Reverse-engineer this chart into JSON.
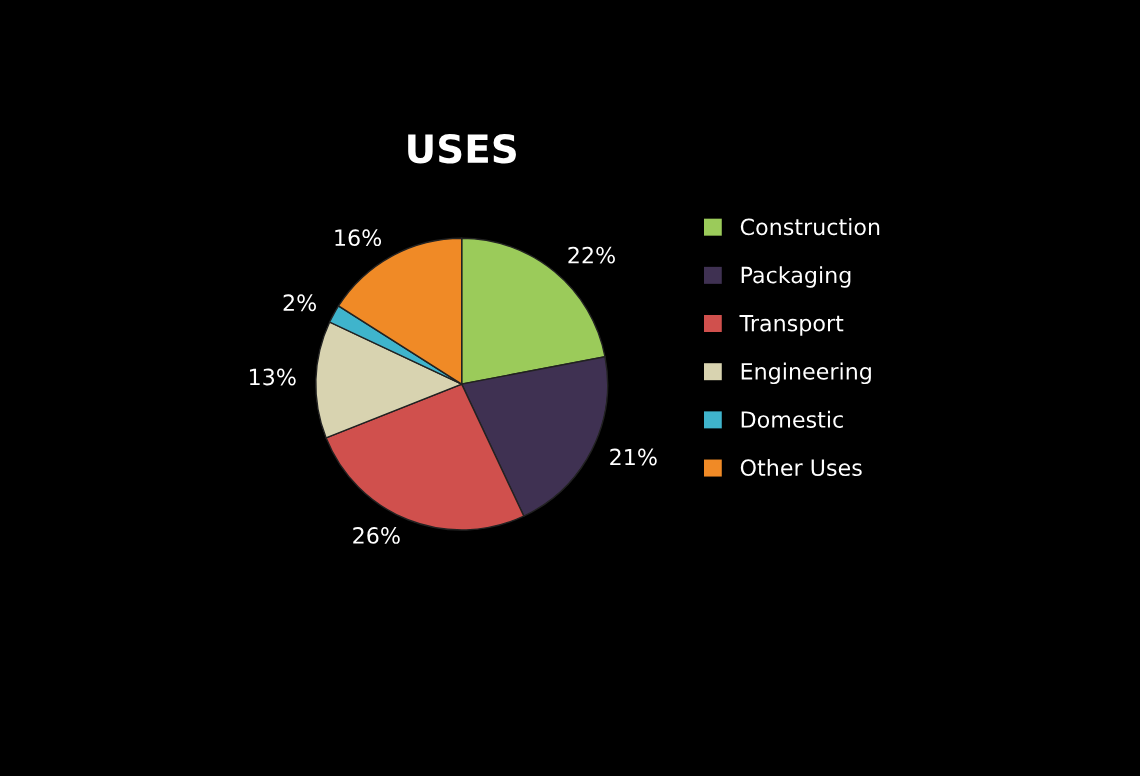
{
  "chart_data": {
    "type": "pie",
    "title": "USES",
    "categories": [
      "Construction",
      "Packaging",
      "Transport",
      "Engineering",
      "Domestic",
      "Other Uses"
    ],
    "values": [
      22,
      21,
      26,
      13,
      2,
      16
    ],
    "colors": [
      "#9bcb5a",
      "#3f3152",
      "#d0504d",
      "#d8d3b0",
      "#3fb4cc",
      "#f08a26"
    ],
    "value_labels": [
      "22%",
      "21%",
      "26%",
      "13%",
      "2%",
      "16%"
    ],
    "legend": "right"
  }
}
